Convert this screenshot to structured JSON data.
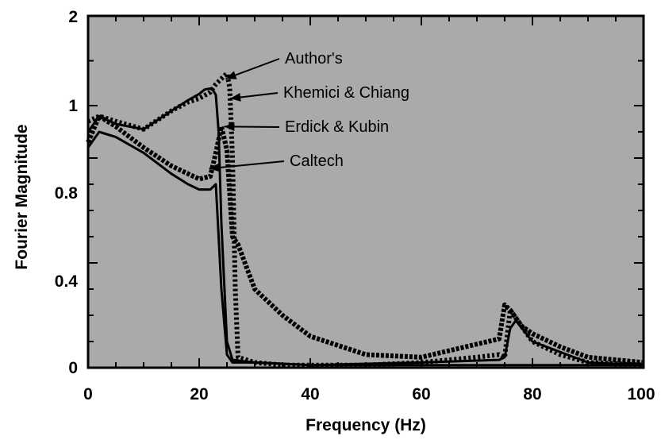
{
  "chart_data": {
    "type": "line",
    "xlabel": "Frequency (Hz)",
    "ylabel": "Fourier Magnitude",
    "xlim": [
      0,
      100
    ],
    "ylim": [
      0,
      2
    ],
    "x_ticks": [
      "0",
      "20",
      "40",
      "60",
      "80",
      "100"
    ],
    "y_ticks": [
      "0",
      "0.4",
      "0.8",
      "1",
      "2"
    ],
    "grid": false,
    "background_color": "#aaaaaa",
    "line_color": "#000000",
    "annotations": [
      "Author's",
      "Khemici & Chiang",
      "Erdick & Kubin",
      "Caltech"
    ],
    "series": [
      {
        "name": "Author's",
        "x": [
          0,
          2,
          5,
          10,
          15,
          18,
          20,
          22,
          23,
          24,
          25,
          25.5,
          26,
          26.5,
          27,
          30,
          35,
          40,
          50,
          60,
          70,
          74,
          75,
          76,
          78,
          80,
          85,
          90,
          100
        ],
        "y": [
          0.94,
          0.96,
          0.94,
          0.91,
          0.98,
          1.04,
          1.08,
          1.15,
          1.24,
          1.3,
          1.36,
          1.2,
          0.8,
          0.3,
          0.04,
          0.02,
          0.01,
          0.01,
          0.01,
          0.02,
          0.04,
          0.05,
          0.04,
          0.22,
          0.16,
          0.1,
          0.05,
          0.02,
          0.01
        ]
      },
      {
        "name": "Khemici & Chiang",
        "x": [
          0,
          2,
          5,
          10,
          15,
          18,
          20,
          21,
          22,
          22.5,
          23,
          23.5,
          24,
          25,
          26,
          30,
          40,
          60,
          74,
          75,
          76,
          77,
          80,
          90,
          100
        ],
        "y": [
          0.9,
          0.96,
          0.93,
          0.91,
          0.98,
          1.06,
          1.13,
          1.18,
          1.19,
          1.17,
          1.12,
          0.9,
          0.55,
          0.1,
          0.03,
          0.02,
          0.01,
          0.02,
          0.03,
          0.04,
          0.15,
          0.18,
          0.1,
          0.02,
          0.01
        ]
      },
      {
        "name": "Erdick & Kubin",
        "x": [
          0,
          2,
          5,
          10,
          15,
          18,
          20,
          22,
          23,
          24,
          25,
          26,
          27,
          30,
          35,
          40,
          50,
          60,
          70,
          72,
          74,
          75,
          76,
          78,
          80,
          85,
          90,
          100
        ],
        "y": [
          0.86,
          0.96,
          0.92,
          0.84,
          0.77,
          0.74,
          0.72,
          0.73,
          0.82,
          0.92,
          0.83,
          0.5,
          0.47,
          0.3,
          0.2,
          0.12,
          0.05,
          0.04,
          0.09,
          0.1,
          0.11,
          0.24,
          0.22,
          0.16,
          0.13,
          0.08,
          0.04,
          0.02
        ]
      },
      {
        "name": "Caltech",
        "x": [
          0,
          2,
          5,
          10,
          15,
          18,
          20,
          22,
          23,
          24,
          25,
          26,
          30,
          40,
          60,
          100
        ],
        "y": [
          0.84,
          0.9,
          0.88,
          0.82,
          0.74,
          0.7,
          0.68,
          0.68,
          0.7,
          0.3,
          0.05,
          0.02,
          0.02,
          0.01,
          0.01,
          0.01
        ]
      }
    ]
  }
}
